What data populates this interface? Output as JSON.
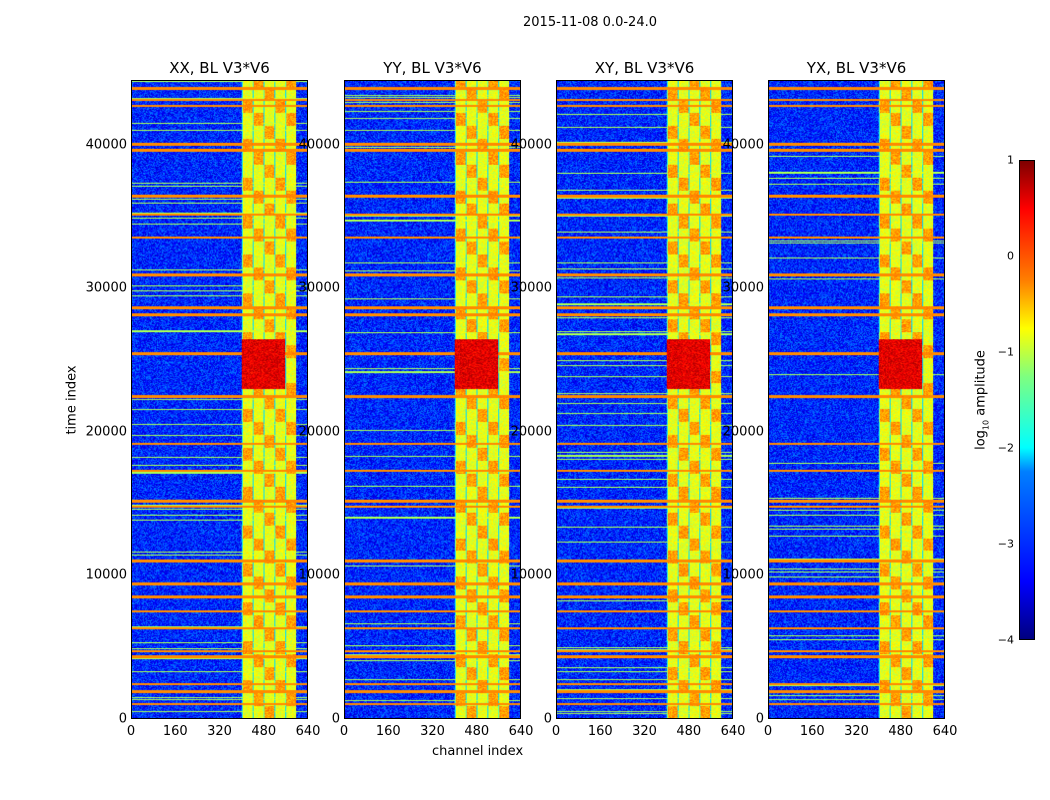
{
  "chart_data": {
    "type": "heatmap",
    "title": "2015-11-08 0.0-24.0",
    "xlabel": "channel index",
    "ylabel": "time index",
    "xlim": [
      0,
      640
    ],
    "ylim": [
      0,
      44500
    ],
    "xticks": [
      "0",
      "160",
      "320",
      "480",
      "640"
    ],
    "yticks": [
      "0",
      "10000",
      "20000",
      "30000",
      "40000"
    ],
    "colormap": "jet",
    "colorbar": {
      "label": "log10 amplitude",
      "label_main": "log",
      "label_sub": "10",
      "label_rest": " amplitude",
      "range": [
        -4,
        1
      ],
      "ticks": [
        "1",
        "0",
        "−1",
        "−2",
        "−3",
        "−4"
      ]
    },
    "panels": [
      {
        "title": "XX, BL V3*V6"
      },
      {
        "title": "YY, BL V3*V6"
      },
      {
        "title": "XY, BL V3*V6"
      },
      {
        "title": "YX, BL V3*V6"
      }
    ],
    "background_level": -3.2,
    "rfi_band_channels": [
      400,
      600
    ],
    "rfi_band_level": -1.0,
    "hot_time_range": [
      23000,
      26500
    ],
    "hot_level": 0.5,
    "rfi_rows": [
      1000,
      1900,
      2400,
      4300,
      4700,
      6300,
      7500,
      8500,
      9400,
      11000,
      14800,
      15200,
      17300,
      19200,
      22500,
      25500,
      28200,
      28700,
      31000,
      33600,
      35200,
      36500,
      39700,
      40100,
      42800,
      43200,
      44000
    ]
  }
}
